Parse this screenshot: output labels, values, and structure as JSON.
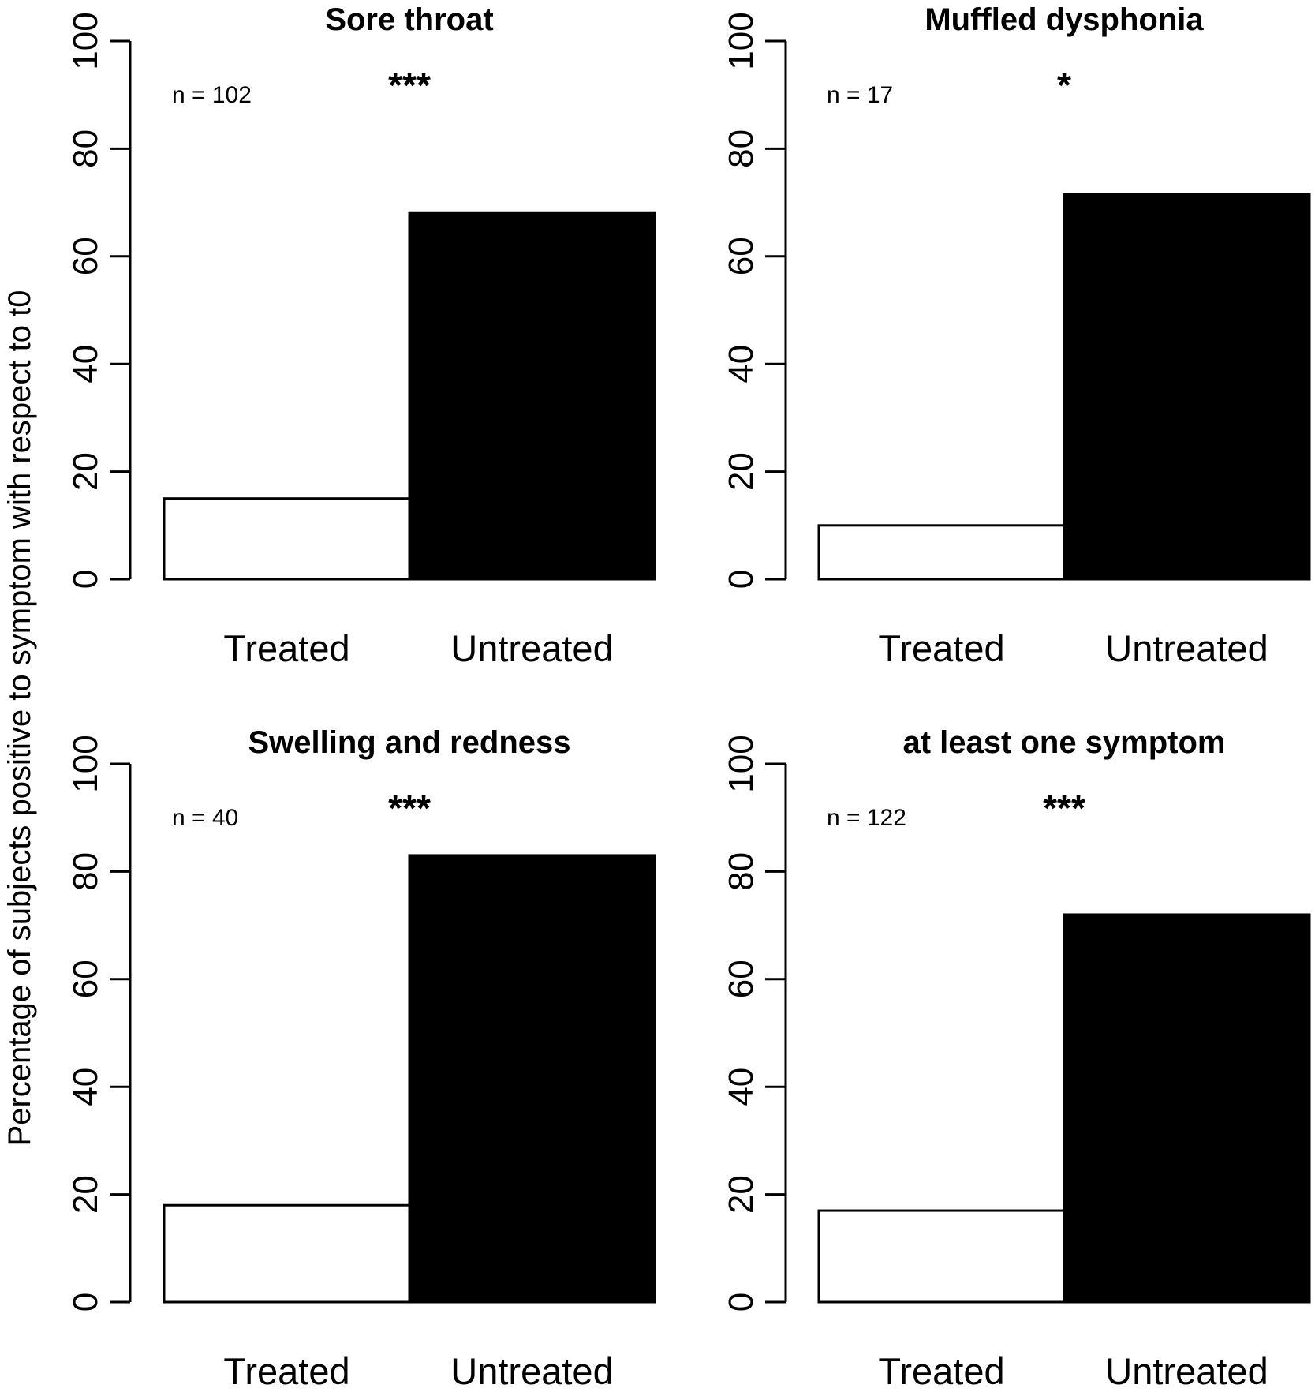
{
  "chart_data": [
    {
      "type": "bar",
      "title": "Sore throat",
      "categories": [
        "Treated",
        "Untreated"
      ],
      "values": [
        15,
        68
      ],
      "ylim": [
        0,
        100
      ],
      "yticks": [
        0,
        20,
        40,
        60,
        80,
        100
      ],
      "n_label": "n = 102",
      "significance": "***",
      "colors": [
        "#ffffff",
        "#000000"
      ],
      "grid": false
    },
    {
      "type": "bar",
      "title": "Muffled dysphonia",
      "categories": [
        "Treated",
        "Untreated"
      ],
      "values": [
        10,
        71.5
      ],
      "ylim": [
        0,
        100
      ],
      "yticks": [
        0,
        20,
        40,
        60,
        80,
        100
      ],
      "n_label": "n = 17",
      "significance": "*",
      "colors": [
        "#ffffff",
        "#000000"
      ],
      "grid": false
    },
    {
      "type": "bar",
      "title": "Swelling and redness",
      "categories": [
        "Treated",
        "Untreated"
      ],
      "values": [
        18,
        83
      ],
      "ylim": [
        0,
        100
      ],
      "yticks": [
        0,
        20,
        40,
        60,
        80,
        100
      ],
      "n_label": "n = 40",
      "significance": "***",
      "colors": [
        "#ffffff",
        "#000000"
      ],
      "grid": false
    },
    {
      "type": "bar",
      "title": "at least one symptom",
      "categories": [
        "Treated",
        "Untreated"
      ],
      "values": [
        17,
        72
      ],
      "ylim": [
        0,
        100
      ],
      "yticks": [
        0,
        20,
        40,
        60,
        80,
        100
      ],
      "n_label": "n = 122",
      "significance": "***",
      "colors": [
        "#ffffff",
        "#000000"
      ],
      "grid": false
    }
  ],
  "ylabel": "Percentage of subjects positive to symptom with respect to t0"
}
